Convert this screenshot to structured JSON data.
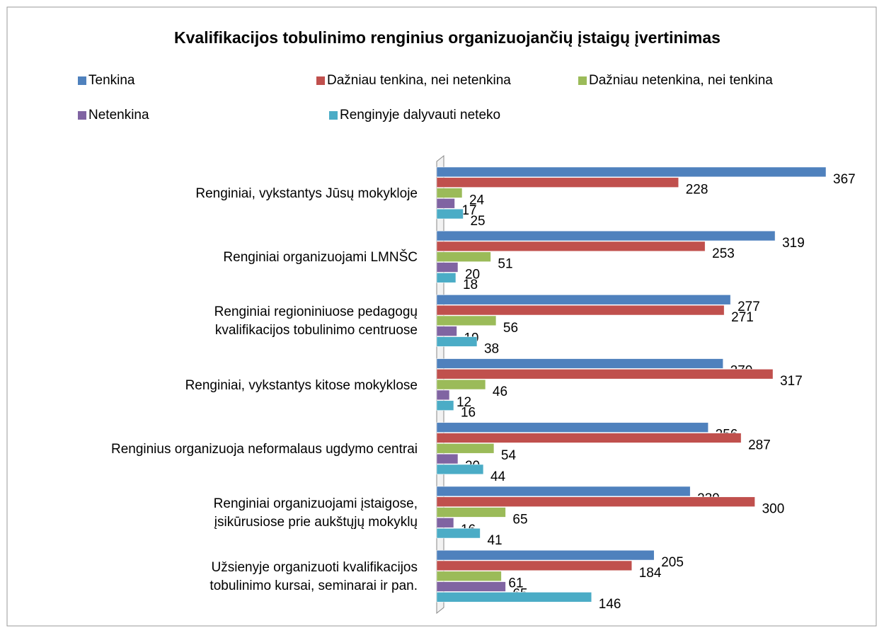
{
  "chart_data": {
    "type": "bar",
    "orientation": "horizontal",
    "title": "Kvalifikacijos tobulinimo renginius organizuojančių įstaigų įvertinimas",
    "categories": [
      "Renginiai, vykstantys Jūsų mokykloje",
      "Renginiai organizuojami LMNŠC",
      "Renginiai regioniniuose pedagogų\nkvalifikacijos tobulinimo centruose",
      "Renginiai, vykstantys kitose mokyklose",
      "Renginius organizuoja neformalaus ugdymo centrai",
      "Renginiai organizuojami įstaigose,\nįsikūrusiose prie aukštųjų mokyklų",
      "Užsienyje organizuoti kvalifikacijos\ntobulinimo kursai, seminarai ir pan."
    ],
    "series": [
      {
        "name": "Tenkina",
        "color": "#4f81bd",
        "values": [
          367,
          319,
          277,
          270,
          256,
          239,
          205
        ]
      },
      {
        "name": "Dažniau tenkina, nei netenkina",
        "color": "#c0504d",
        "values": [
          228,
          253,
          271,
          317,
          287,
          300,
          184
        ]
      },
      {
        "name": "Dažniau netenkina, nei tenkina",
        "color": "#9bbb59",
        "values": [
          24,
          51,
          56,
          46,
          54,
          65,
          61
        ]
      },
      {
        "name": "Netenkina",
        "color": "#8064a2",
        "values": [
          17,
          20,
          19,
          12,
          20,
          16,
          65
        ]
      },
      {
        "name": "Renginyje dalyvauti neteko",
        "color": "#4bacc6",
        "values": [
          25,
          18,
          38,
          16,
          44,
          41,
          146
        ]
      }
    ],
    "legend": "top"
  }
}
